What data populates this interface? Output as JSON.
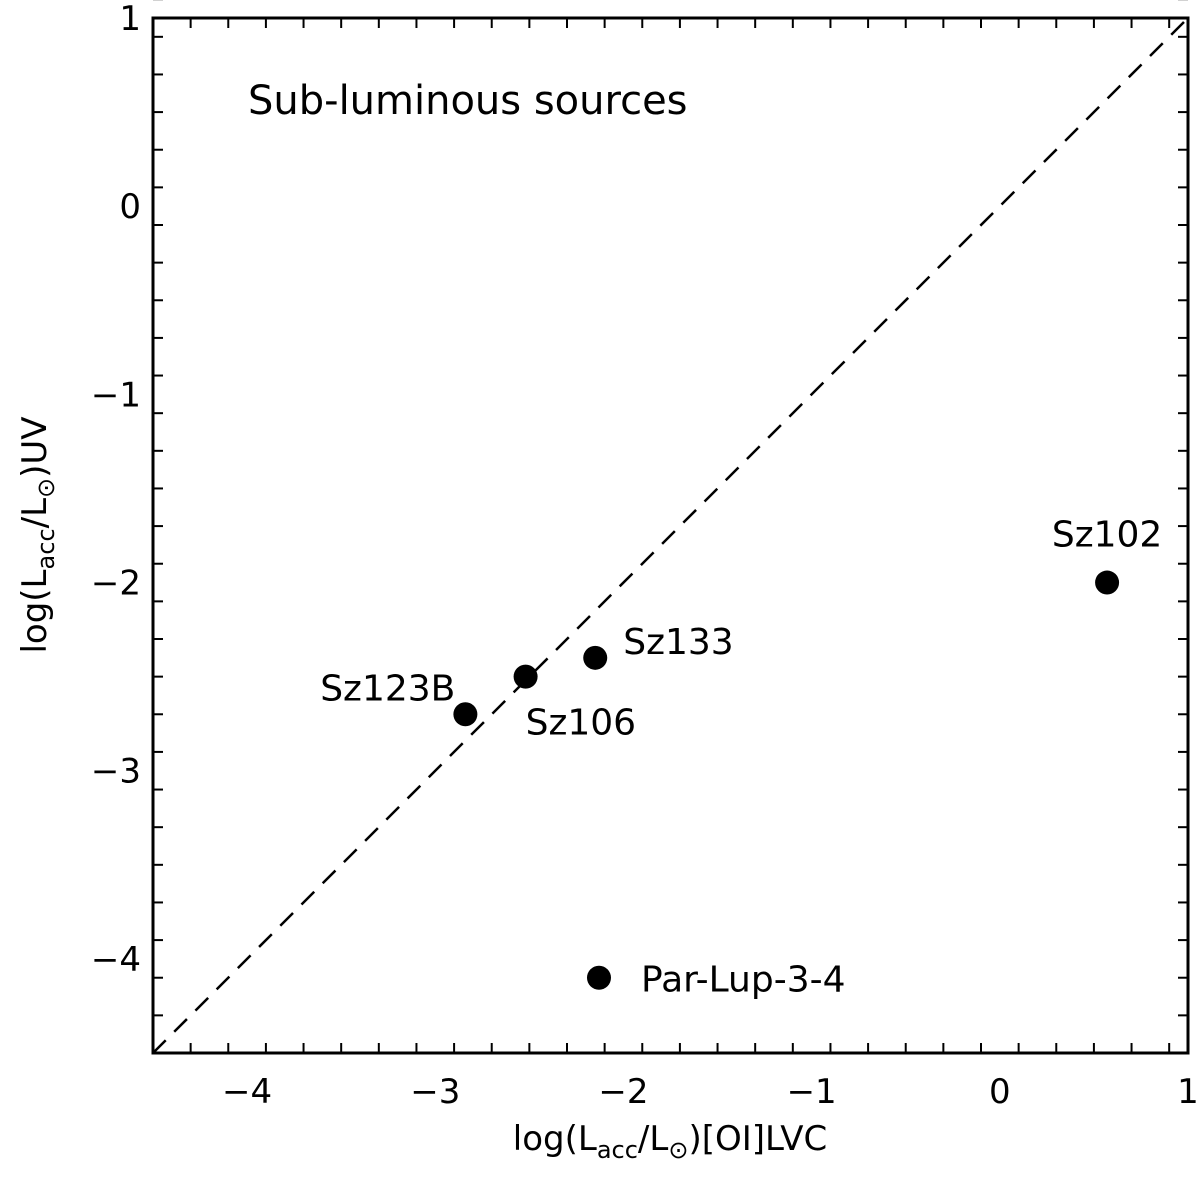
{
  "chart_data": {
    "type": "scatter",
    "title": "",
    "annotation": "Sub-luminous sources",
    "xlabel": {
      "prefix": "log(L",
      "sub1": "acc",
      "mid": "/L",
      "sun": "⊙",
      "suffix": ")[OI]LVC"
    },
    "ylabel": {
      "prefix": "log(L",
      "sub1": "acc",
      "mid": "/L",
      "sun": "⊙",
      "suffix": ")UV"
    },
    "xlim": [
      -4.5,
      1
    ],
    "ylim": [
      -4.5,
      1
    ],
    "x_ticks": [
      -4,
      -3,
      -2,
      -1,
      0,
      1
    ],
    "y_ticks": [
      1,
      0,
      -1,
      -2,
      -3,
      -4
    ],
    "x_tick_labels": [
      "−4",
      "−3",
      "−2",
      "−1",
      "0",
      "1"
    ],
    "y_tick_labels": [
      "1",
      "0",
      "−1",
      "−2",
      "−3",
      "−4"
    ],
    "minor_tick_step": 0.2,
    "reference_line": {
      "style": "dashed",
      "relation": "y = x"
    },
    "points": [
      {
        "name": "Sz102",
        "x": 0.57,
        "y": -2.0
      },
      {
        "name": "Sz133",
        "x": -2.15,
        "y": -2.4
      },
      {
        "name": "Sz106",
        "x": -2.52,
        "y": -2.5
      },
      {
        "name": "Sz123B",
        "x": -2.84,
        "y": -2.7
      },
      {
        "name": "Par-Lup-3-4",
        "x": -2.13,
        "y": -4.1
      }
    ],
    "grid": false,
    "legend": "none"
  }
}
